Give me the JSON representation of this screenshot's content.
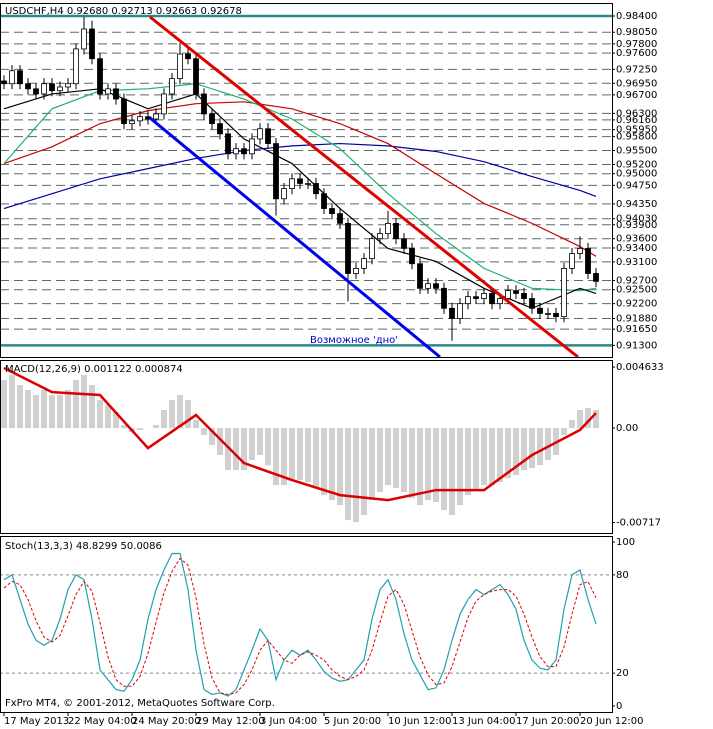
{
  "chart_data": [
    {
      "type": "candlestick",
      "title": "USDCHF,H4  0.92680 0.92713 0.92663 0.92678",
      "annotation": "Возможное 'дно'",
      "ylim": [
        0.9105,
        0.9868
      ],
      "yticks": [
        {
          "value": 0.984,
          "label": "0.98400"
        },
        {
          "value": 0.9805,
          "label": "0.98050"
        },
        {
          "value": 0.978,
          "label": "0.97800"
        },
        {
          "value": 0.976,
          "label": "0.97600"
        },
        {
          "value": 0.9725,
          "label": "0.97250"
        },
        {
          "value": 0.9695,
          "label": "0.96950"
        },
        {
          "value": 0.967,
          "label": "0.96700"
        },
        {
          "value": 0.963,
          "label": "0.96300"
        },
        {
          "value": 0.9616,
          "label": "0.96160"
        },
        {
          "value": 0.9595,
          "label": "0.95950"
        },
        {
          "value": 0.958,
          "label": "0.95800"
        },
        {
          "value": 0.955,
          "label": "0.95500"
        },
        {
          "value": 0.952,
          "label": "0.95200"
        },
        {
          "value": 0.95,
          "label": "0.95000"
        },
        {
          "value": 0.9475,
          "label": "0.94750"
        },
        {
          "value": 0.9435,
          "label": "0.94350"
        },
        {
          "value": 0.9403,
          "label": "0.94030"
        },
        {
          "value": 0.939,
          "label": "0.93900"
        },
        {
          "value": 0.936,
          "label": "0.93600"
        },
        {
          "value": 0.934,
          "label": "0.93400"
        },
        {
          "value": 0.931,
          "label": "0.93100"
        },
        {
          "value": 0.927,
          "label": "0.92700"
        },
        {
          "value": 0.925,
          "label": "0.92500"
        },
        {
          "value": 0.922,
          "label": "0.92200"
        },
        {
          "value": 0.9188,
          "label": "0.91880"
        },
        {
          "value": 0.9165,
          "label": "0.91650"
        },
        {
          "value": 0.913,
          "label": "0.91300"
        }
      ],
      "grid": true,
      "open": [
        0.97,
        0.9694,
        0.9722,
        0.9694,
        0.9683,
        0.9672,
        0.9694,
        0.9679,
        0.9687,
        0.9694,
        0.9769,
        0.9812,
        0.9748,
        0.9672,
        0.9683,
        0.9661,
        0.9608,
        0.9614,
        0.9623,
        0.9618,
        0.9629,
        0.9672,
        0.9705,
        0.9758,
        0.9748,
        0.9672,
        0.9629,
        0.9608,
        0.9586,
        0.9543,
        0.9554,
        0.9543,
        0.9575,
        0.9597,
        0.9565,
        0.9446,
        0.9468,
        0.9489,
        0.9479,
        0.9479,
        0.9457,
        0.9425,
        0.9414,
        0.9393,
        0.9285,
        0.9296,
        0.9317,
        0.936,
        0.9371,
        0.9393,
        0.936,
        0.9339,
        0.9306,
        0.9253,
        0.9263,
        0.9253,
        0.921,
        0.9188,
        0.922,
        0.9235,
        0.9231,
        0.9242,
        0.922,
        0.9231,
        0.9248,
        0.9242,
        0.9231,
        0.921,
        0.9199,
        0.9199,
        0.9192,
        0.9296,
        0.9328,
        0.9339,
        0.9285
      ],
      "high": [
        0.9712,
        0.9734,
        0.9734,
        0.9706,
        0.9695,
        0.9706,
        0.9706,
        0.9699,
        0.9706,
        0.9781,
        0.9838,
        0.983,
        0.976,
        0.9695,
        0.9695,
        0.9673,
        0.9626,
        0.9635,
        0.9635,
        0.9641,
        0.9684,
        0.9717,
        0.9782,
        0.9775,
        0.976,
        0.9684,
        0.9641,
        0.962,
        0.9598,
        0.9566,
        0.9566,
        0.9587,
        0.9609,
        0.9609,
        0.9577,
        0.948,
        0.9501,
        0.9501,
        0.9491,
        0.9491,
        0.9469,
        0.9437,
        0.9426,
        0.9405,
        0.9308,
        0.9329,
        0.9372,
        0.9383,
        0.942,
        0.9405,
        0.9372,
        0.9351,
        0.9318,
        0.9275,
        0.9275,
        0.9265,
        0.9222,
        0.9232,
        0.9247,
        0.9247,
        0.9254,
        0.9254,
        0.9243,
        0.926,
        0.926,
        0.9254,
        0.9243,
        0.9222,
        0.9211,
        0.9211,
        0.9308,
        0.934,
        0.9365,
        0.9351,
        0.9297
      ],
      "low": [
        0.9682,
        0.9682,
        0.9682,
        0.9671,
        0.966,
        0.966,
        0.9667,
        0.9667,
        0.9675,
        0.9682,
        0.9757,
        0.9736,
        0.966,
        0.966,
        0.9649,
        0.9596,
        0.9596,
        0.9602,
        0.9606,
        0.9606,
        0.9617,
        0.966,
        0.9693,
        0.9736,
        0.966,
        0.9617,
        0.9596,
        0.9574,
        0.9531,
        0.9531,
        0.9531,
        0.9531,
        0.9563,
        0.9553,
        0.941,
        0.9434,
        0.9456,
        0.9467,
        0.9467,
        0.9445,
        0.9413,
        0.9402,
        0.9381,
        0.9225,
        0.9273,
        0.9284,
        0.9305,
        0.9348,
        0.9359,
        0.9348,
        0.9327,
        0.9294,
        0.9241,
        0.9241,
        0.9241,
        0.9198,
        0.914,
        0.9176,
        0.9208,
        0.9219,
        0.9219,
        0.9208,
        0.9208,
        0.9219,
        0.923,
        0.9219,
        0.9198,
        0.9187,
        0.9187,
        0.918,
        0.918,
        0.9284,
        0.9316,
        0.9273,
        0.9256
      ],
      "close": [
        0.9694,
        0.9722,
        0.9694,
        0.9683,
        0.9672,
        0.9694,
        0.9679,
        0.9687,
        0.9694,
        0.9769,
        0.9812,
        0.9748,
        0.9672,
        0.9683,
        0.9661,
        0.9608,
        0.9614,
        0.9623,
        0.9618,
        0.9629,
        0.9672,
        0.9705,
        0.9758,
        0.9748,
        0.9672,
        0.9629,
        0.9608,
        0.9586,
        0.9543,
        0.9554,
        0.9543,
        0.9575,
        0.9597,
        0.9565,
        0.9446,
        0.9468,
        0.9489,
        0.9479,
        0.9479,
        0.9457,
        0.9425,
        0.9414,
        0.9393,
        0.9285,
        0.9296,
        0.9317,
        0.936,
        0.9371,
        0.9393,
        0.936,
        0.9339,
        0.9306,
        0.9253,
        0.9263,
        0.9253,
        0.921,
        0.9188,
        0.922,
        0.9235,
        0.9231,
        0.9242,
        0.922,
        0.9231,
        0.9248,
        0.9242,
        0.9231,
        0.921,
        0.9199,
        0.9199,
        0.9192,
        0.9296,
        0.9328,
        0.9339,
        0.9285,
        0.9268
      ],
      "line_x": [
        0,
        6,
        12,
        18,
        24,
        30,
        36,
        42,
        48,
        54,
        60,
        66,
        72,
        74
      ],
      "series": [
        {
          "color": "#0000a0",
          "values": [
            0.9425,
            0.9457,
            0.9489,
            0.9511,
            0.9533,
            0.955,
            0.956,
            0.9565,
            0.956,
            0.9548,
            0.9526,
            0.9494,
            0.9464,
            0.9451
          ]
        },
        {
          "color": "#cc0000",
          "values": [
            0.9522,
            0.9558,
            0.9608,
            0.9636,
            0.9651,
            0.9655,
            0.964,
            0.9608,
            0.9565,
            0.95,
            0.9436,
            0.9393,
            0.9343,
            0.9322
          ]
        },
        {
          "color": "#20b070",
          "values": [
            0.9522,
            0.964,
            0.9679,
            0.9683,
            0.9694,
            0.9661,
            0.9618,
            0.9554,
            0.9457,
            0.9371,
            0.9296,
            0.9253,
            0.9248,
            0.9253
          ]
        },
        {
          "color": "#000000",
          "values": [
            0.964,
            0.9672,
            0.9683,
            0.964,
            0.9672,
            0.9575,
            0.9522,
            0.9425,
            0.9339,
            0.9311,
            0.9253,
            0.921,
            0.9253,
            0.9242
          ]
        }
      ]
    },
    {
      "type": "macd",
      "title": "MACD(12,26,9) 0.001122 0.000874",
      "ylim": [
        -0.00797,
        0.00517
      ],
      "yticks": [
        0.004633,
        {
          "value": 0,
          "label": "0.00"
        },
        -0.00717
      ],
      "color": "#a0a0a0",
      "values": [
        0.00365,
        0.00403,
        0.00327,
        0.00289,
        0.00251,
        0.00289,
        0.00251,
        0.00251,
        0.00289,
        0.00365,
        0.00403,
        0.00327,
        0.00213,
        0.00175,
        0.00122,
        0.00023,
        -0.0003,
        -0.00015,
        0,
        0.00023,
        0.00137,
        0.00213,
        0.00251,
        0.00213,
        0.00061,
        -0.00053,
        -0.00129,
        -0.00205,
        -0.00319,
        -0.00319,
        -0.00319,
        -0.00243,
        -0.00205,
        -0.00281,
        -0.00433,
        -0.00433,
        -0.00395,
        -0.00395,
        -0.0041,
        -0.00456,
        -0.00509,
        -0.00547,
        -0.00585,
        -0.00699,
        -0.00714,
        -0.00661,
        -0.00547,
        -0.00486,
        -0.00433,
        -0.00456,
        -0.00486,
        -0.00532,
        -0.00585,
        -0.00547,
        -0.00562,
        -0.00623,
        -0.00661,
        -0.00585,
        -0.00509,
        -0.00471,
        -0.00433,
        -0.00433,
        -0.0041,
        -0.0038,
        -0.00357,
        -0.00319,
        -0.00304,
        -0.00281,
        -0.00243,
        -0.00205,
        -0.00053,
        0.00061,
        0.00137,
        0.00152,
        0.00137
      ],
      "signal": {
        "color": "#dd0000",
        "x": [
          0,
          6,
          12,
          18,
          24,
          30,
          36,
          42,
          48,
          54,
          60,
          66,
          72,
          74
        ],
        "values": [
          0.00456,
          0.00273,
          0.00251,
          -0.00152,
          0.00099,
          -0.00266,
          -0.00395,
          -0.00509,
          -0.00547,
          -0.00471,
          -0.00471,
          -0.00205,
          -0.00015,
          0.00114
        ]
      }
    },
    {
      "type": "stochastic",
      "title": "Stoch(13,3,3) 48.8299 50.0086",
      "ylim": [
        -3.7,
        103.7
      ],
      "yticks": [
        100,
        80,
        20,
        0
      ],
      "levels": [
        80,
        20
      ],
      "xticks": [
        {
          "value": 0,
          "label": "17 May 2013"
        },
        {
          "value": 8,
          "label": "22 May 04:00"
        },
        {
          "value": 16,
          "label": "24 May 20:00"
        },
        {
          "value": 24,
          "label": "29 May 12:00"
        },
        {
          "value": 32,
          "label": "3 Jun 04:00"
        },
        {
          "value": 40,
          "label": "5 Jun 20:00"
        },
        {
          "value": 48,
          "label": "10 Jun 12:00"
        },
        {
          "value": 56,
          "label": "13 Jun 04:00"
        },
        {
          "value": 64,
          "label": "17 Jun 20:00"
        },
        {
          "value": 72,
          "label": "20 Jun 12:00"
        }
      ],
      "main": {
        "color": "#20a0b0",
        "values": [
          77,
          80,
          65,
          50,
          40,
          37,
          40,
          53,
          71,
          80,
          77,
          53,
          22,
          16,
          10,
          9,
          16,
          28,
          53,
          71,
          83,
          93,
          93,
          71,
          34,
          10,
          7,
          8,
          6,
          10,
          22,
          34,
          47,
          40,
          16,
          28,
          34,
          31,
          34,
          28,
          21,
          17,
          15,
          16,
          22,
          28,
          53,
          71,
          77,
          65,
          44,
          28,
          19,
          10,
          11,
          22,
          40,
          56,
          65,
          71,
          68,
          71,
          74,
          68,
          59,
          40,
          28,
          23,
          22,
          28,
          59,
          80,
          83,
          65,
          50
        ]
      },
      "signal": {
        "color": "#dd0000",
        "values": [
          72,
          76,
          74,
          65,
          52,
          42,
          39,
          43,
          55,
          68,
          76,
          70,
          51,
          30,
          16,
          12,
          12,
          18,
          32,
          51,
          69,
          82,
          90,
          86,
          66,
          38,
          17,
          8,
          7,
          8,
          13,
          22,
          34,
          40,
          34,
          28,
          26,
          31,
          33,
          31,
          28,
          22,
          18,
          16,
          18,
          22,
          34,
          51,
          67,
          71,
          62,
          46,
          30,
          19,
          13,
          14,
          24,
          39,
          54,
          64,
          68,
          70,
          71,
          71,
          67,
          56,
          42,
          30,
          24,
          24,
          36,
          56,
          74,
          76,
          66
        ]
      }
    }
  ],
  "watermark": "FxPro MT4, © 2001-2012, MetaQuotes Software Corp."
}
